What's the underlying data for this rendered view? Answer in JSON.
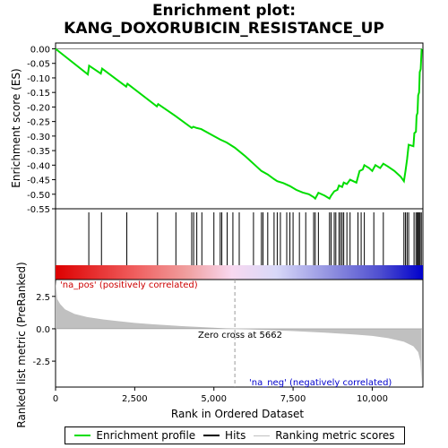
{
  "title_line1": "Enrichment plot:",
  "title_line2": "KANG_DOXORUBICIN_RESISTANCE_UP",
  "legend": [
    {
      "label": "Enrichment profile",
      "color": "#00dd00"
    },
    {
      "label": "Hits",
      "color": "#000000"
    },
    {
      "label": "Ranking metric scores",
      "color": "#c0c0c0"
    }
  ],
  "chart_data": {
    "type": "line",
    "xlabel": "Rank in Ordered Dataset",
    "xlim": [
      0,
      11600
    ],
    "x_ticks": [
      0,
      2500,
      5000,
      7500,
      10000
    ],
    "x_tick_labels": [
      "0",
      "2,500",
      "5,000",
      "7,500",
      "10,000"
    ],
    "panels": {
      "enrichment": {
        "ylabel": "Enrichment score (ES)",
        "ylim": [
          -0.55,
          0.02
        ],
        "y_ticks": [
          0.0,
          -0.05,
          -0.1,
          -0.15,
          -0.2,
          -0.25,
          -0.3,
          -0.35,
          -0.4,
          -0.45,
          -0.5,
          -0.55
        ],
        "y_tick_labels": [
          "0.00",
          "-0.05",
          "-0.10",
          "-0.15",
          "-0.20",
          "-0.25",
          "-0.30",
          "-0.35",
          "-0.40",
          "-0.45",
          "-0.50",
          "-0.55"
        ],
        "line_color": "#00dd00",
        "profile": [
          [
            0,
            0.0
          ],
          [
            1020,
            -0.088
          ],
          [
            1060,
            -0.058
          ],
          [
            1430,
            -0.085
          ],
          [
            1470,
            -0.068
          ],
          [
            2230,
            -0.13
          ],
          [
            2270,
            -0.12
          ],
          [
            3200,
            -0.198
          ],
          [
            3240,
            -0.19
          ],
          [
            3800,
            -0.232
          ],
          [
            4300,
            -0.272
          ],
          [
            4350,
            -0.268
          ],
          [
            4450,
            -0.272
          ],
          [
            4600,
            -0.276
          ],
          [
            5000,
            -0.3
          ],
          [
            5200,
            -0.312
          ],
          [
            5400,
            -0.322
          ],
          [
            5662,
            -0.34
          ],
          [
            6000,
            -0.37
          ],
          [
            6300,
            -0.4
          ],
          [
            6500,
            -0.42
          ],
          [
            6700,
            -0.432
          ],
          [
            6900,
            -0.448
          ],
          [
            7000,
            -0.455
          ],
          [
            7200,
            -0.462
          ],
          [
            7400,
            -0.472
          ],
          [
            7600,
            -0.485
          ],
          [
            7800,
            -0.494
          ],
          [
            8000,
            -0.5
          ],
          [
            8150,
            -0.51
          ],
          [
            8200,
            -0.515
          ],
          [
            8300,
            -0.495
          ],
          [
            8500,
            -0.505
          ],
          [
            8650,
            -0.515
          ],
          [
            8700,
            -0.505
          ],
          [
            8800,
            -0.49
          ],
          [
            8900,
            -0.485
          ],
          [
            8950,
            -0.47
          ],
          [
            9050,
            -0.475
          ],
          [
            9100,
            -0.46
          ],
          [
            9200,
            -0.465
          ],
          [
            9300,
            -0.45
          ],
          [
            9400,
            -0.455
          ],
          [
            9500,
            -0.46
          ],
          [
            9600,
            -0.42
          ],
          [
            9700,
            -0.415
          ],
          [
            9750,
            -0.4
          ],
          [
            9900,
            -0.41
          ],
          [
            10000,
            -0.42
          ],
          [
            10100,
            -0.4
          ],
          [
            10250,
            -0.41
          ],
          [
            10350,
            -0.395
          ],
          [
            10500,
            -0.405
          ],
          [
            10700,
            -0.42
          ],
          [
            10900,
            -0.44
          ],
          [
            11000,
            -0.455
          ],
          [
            11050,
            -0.42
          ],
          [
            11100,
            -0.38
          ],
          [
            11150,
            -0.33
          ],
          [
            11300,
            -0.335
          ],
          [
            11330,
            -0.29
          ],
          [
            11380,
            -0.285
          ],
          [
            11400,
            -0.23
          ],
          [
            11430,
            -0.22
          ],
          [
            11450,
            -0.16
          ],
          [
            11480,
            -0.15
          ],
          [
            11500,
            -0.08
          ],
          [
            11530,
            -0.07
          ],
          [
            11560,
            0.0
          ]
        ]
      },
      "hits": {
        "positions": [
          1050,
          1450,
          2250,
          3220,
          3800,
          4300,
          4360,
          4460,
          4620,
          5000,
          5200,
          5250,
          5420,
          5600,
          5800,
          6250,
          6500,
          6550,
          6700,
          6900,
          7000,
          7100,
          7300,
          7400,
          7500,
          7700,
          7900,
          8150,
          8200,
          8300,
          8650,
          8700,
          8800,
          8850,
          8950,
          9000,
          9050,
          9100,
          9200,
          9300,
          9550,
          9650,
          9750,
          10050,
          10350,
          11000,
          11050,
          11100,
          11150,
          11320,
          11380,
          11420,
          11450,
          11480,
          11510,
          11550
        ]
      },
      "ranking": {
        "ylabel": "Ranked list metric (PreRanked)",
        "ylim": [
          -4.5,
          3.8
        ],
        "y_ticks": [
          2.5,
          0.0,
          -2.5
        ],
        "y_tick_labels": [
          "2.5",
          "0.0",
          "-2.5"
        ],
        "fill_color": "#c0c0c0",
        "curve": [
          [
            0,
            3.7
          ],
          [
            50,
            2.3
          ],
          [
            150,
            1.9
          ],
          [
            300,
            1.5
          ],
          [
            600,
            1.15
          ],
          [
            1000,
            0.9
          ],
          [
            1500,
            0.72
          ],
          [
            2000,
            0.58
          ],
          [
            2500,
            0.45
          ],
          [
            3000,
            0.36
          ],
          [
            3500,
            0.28
          ],
          [
            4000,
            0.2
          ],
          [
            4500,
            0.14
          ],
          [
            5000,
            0.08
          ],
          [
            5662,
            0.0
          ],
          [
            6500,
            -0.08
          ],
          [
            7500,
            -0.18
          ],
          [
            8500,
            -0.3
          ],
          [
            9500,
            -0.45
          ],
          [
            10000,
            -0.55
          ],
          [
            10500,
            -0.72
          ],
          [
            11000,
            -1.0
          ],
          [
            11300,
            -1.35
          ],
          [
            11450,
            -1.8
          ],
          [
            11520,
            -2.5
          ],
          [
            11560,
            -4.2
          ]
        ],
        "zero_cross_label": "Zero cross at 5662",
        "zero_cross_rank": 5662,
        "pos_label": "'na_pos' (positively correlated)",
        "neg_label": "'na_neg' (negatively correlated)"
      }
    }
  }
}
